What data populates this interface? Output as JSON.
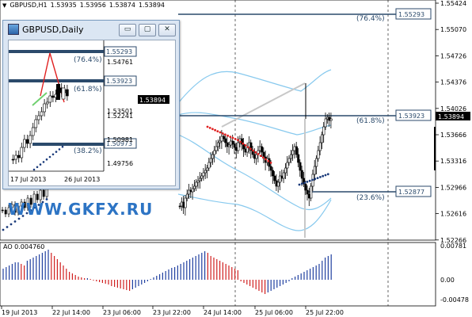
{
  "header": {
    "symbol_tf": "GBPUSD,H1",
    "o": "1.53935",
    "h": "1.53956",
    "l": "1.53874",
    "c": "1.53894"
  },
  "price_axis": [
    "1.55424",
    "1.55070",
    "1.54726",
    "1.54376",
    "1.54026",
    "1.53666",
    "1.53316",
    "1.52966",
    "1.52616",
    "1.52266"
  ],
  "current_price": "1.53894",
  "fib_levels": [
    {
      "pct": "(76.4%)",
      "price": "1.55293"
    },
    {
      "pct": "(61.8%)",
      "price": "1.53923"
    },
    {
      "pct": "(23.6%)",
      "price": "1.52877"
    }
  ],
  "time_axis": [
    "19 Jul 2013",
    "22 Jul 14:00",
    "23 Jul 06:00",
    "23 Jul 22:00",
    "24 Jul 14:00",
    "25 Jul 06:00",
    "25 Jul 22:00"
  ],
  "ao": {
    "label": "AO 0.004760",
    "axis": [
      "0.00781",
      "0.00",
      "-0.00478"
    ]
  },
  "watermark": "WWW.GKFX.RU",
  "inset": {
    "title": "GBPUSD,Daily",
    "price_axis": [
      "1.54761",
      "1.53501",
      "1.52241",
      "1.50981",
      "1.49756"
    ],
    "current_price": "1.53894",
    "fib_levels": [
      {
        "pct": "(76.4%)",
        "price": "1.55293"
      },
      {
        "pct": "(61.8%)",
        "price": "1.53923"
      },
      {
        "pct": "(38.2%)",
        "price": "1.50973"
      }
    ],
    "time_axis": [
      "17 Jul 2013",
      "26 Jul 2013"
    ],
    "buttons": {
      "minimize": "▭",
      "maximize": "▢",
      "close": "✕"
    }
  },
  "colors": {
    "line_blue": "#2b4a6b",
    "band": "#87c9ee",
    "sar": "#e02020",
    "ao_red": "#d02020",
    "ao_blue": "#2040a0"
  }
}
